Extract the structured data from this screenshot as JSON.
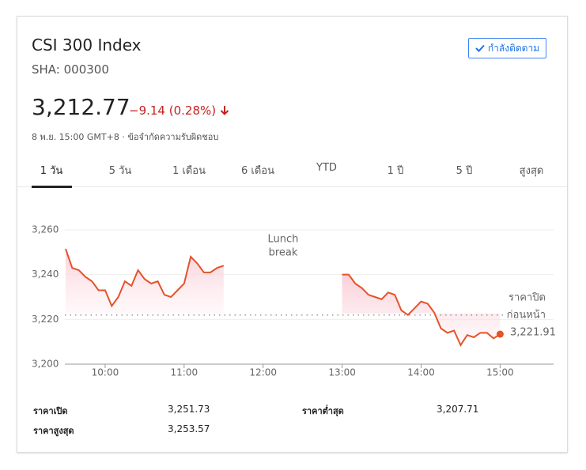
{
  "header": {
    "title": "CSI 300 Index",
    "ticker": "SHA: 000300",
    "follow_button": "กำลังติดตาม",
    "price": "3,212.77",
    "change": "−9.14 (0.28%)",
    "meta": "8 พ.ย. 15:00 GMT+8 · ข้อจำกัดความรับผิดชอบ",
    "tabs": [
      "1 วัน",
      "5 วัน",
      "1 เดือน",
      "6 เดือน",
      "YTD",
      "1 ปี",
      "5 ปี",
      "สูงสุด"
    ]
  },
  "chart_data": {
    "type": "line",
    "x": [
      570,
      575,
      580,
      585,
      590,
      595,
      600,
      605,
      610,
      615,
      620,
      625,
      630,
      635,
      640,
      645,
      650,
      655,
      660,
      665,
      670,
      675,
      680,
      685,
      690,
      735,
      780,
      785,
      790,
      795,
      800,
      805,
      810,
      815,
      820,
      825,
      830,
      835,
      840,
      845,
      850,
      855,
      860,
      865,
      870,
      875,
      880,
      885,
      890,
      895,
      900
    ],
    "series": [
      {
        "name": "CSI 300 Index",
        "color": "#e4532a",
        "values": [
          3251.5,
          3243,
          3242,
          3239,
          3237,
          3233,
          3233,
          3226,
          3230,
          3237,
          3235,
          3242,
          3238,
          3236,
          3237,
          3231,
          3230,
          3233,
          3236,
          3248,
          3245,
          3241,
          3241,
          3243,
          3244,
          null,
          3240,
          3240,
          3236,
          3234,
          3231,
          3230,
          3229,
          3232,
          3231,
          3224,
          3222,
          3225,
          3228,
          3227,
          3223,
          3216,
          3214,
          3215,
          3208.5,
          3213,
          3212,
          3214,
          3214,
          3211.5,
          3213.4
        ]
      }
    ],
    "xlim": [
      570,
      940
    ],
    "ylim": [
      3200,
      3260
    ],
    "xticks": [
      {
        "value": 600,
        "label": "10:00"
      },
      {
        "value": 660,
        "label": "11:00"
      },
      {
        "value": 720,
        "label": "12:00"
      },
      {
        "value": 780,
        "label": "13:00"
      },
      {
        "value": 840,
        "label": "14:00"
      },
      {
        "value": 900,
        "label": "15:00"
      }
    ],
    "yticks": [
      {
        "value": 3200,
        "label": "3,200"
      },
      {
        "value": 3220,
        "label": "3,220"
      },
      {
        "value": 3240,
        "label": "3,240"
      },
      {
        "value": 3260,
        "label": "3,260"
      }
    ],
    "grid": true,
    "annotation": [
      "Lunch",
      "break"
    ],
    "previous_close": {
      "value": 3221.91,
      "label": "3,221.91"
    },
    "previous_close_title": [
      "ราคาปิด",
      "ก่อนหน้า"
    ]
  },
  "stats": [
    {
      "label": "ราคาเปิด",
      "value": "3,251.73"
    },
    {
      "label": "ราคาสูงสุด",
      "value": "3,253.57"
    },
    {
      "label": "ราคาต่ำสุด",
      "value": "3,207.71"
    }
  ]
}
